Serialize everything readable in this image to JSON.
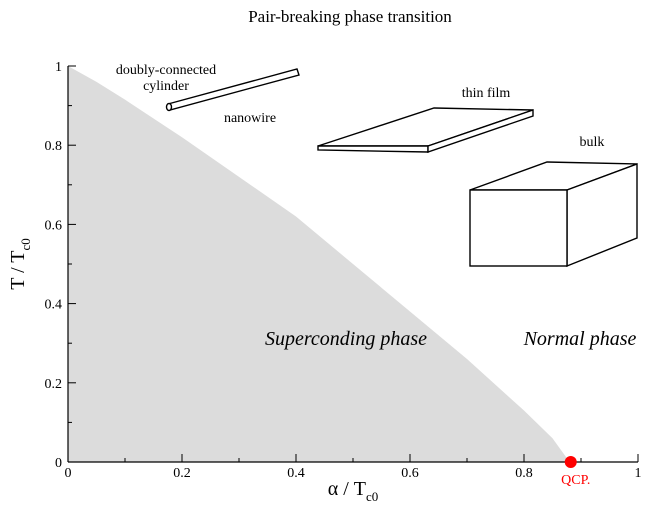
{
  "chart_data": {
    "type": "area",
    "title": "Pair-breaking phase transition",
    "xlabel": {
      "main": "α  / T",
      "sub": "c0"
    },
    "ylabel": {
      "main": "T / T",
      "sub": "c0"
    },
    "x": [
      0,
      0.05,
      0.1,
      0.2,
      0.3,
      0.4,
      0.5,
      0.6,
      0.7,
      0.8,
      0.85,
      0.88
    ],
    "series": [
      {
        "name": "Superconducting region",
        "color": "#dcdcdc",
        "values": [
          1,
          0.96,
          0.915,
          0.82,
          0.72,
          0.62,
          0.5,
          0.38,
          0.26,
          0.13,
          0.06,
          0
        ]
      }
    ],
    "xlim": [
      0,
      1
    ],
    "ylim": [
      0,
      1
    ],
    "xticks": [
      0,
      0.2,
      0.4,
      0.6,
      0.8,
      1
    ],
    "yticks": [
      0,
      0.2,
      0.4,
      0.6,
      0.8,
      1
    ],
    "xminorticks": [
      0.1,
      0.3,
      0.5,
      0.7,
      0.9
    ],
    "yminorticks": [
      0.1,
      0.3,
      0.5,
      0.7,
      0.9
    ],
    "qcp": {
      "x": 0.882,
      "y": 0,
      "label": "QCP.",
      "color": "#ff0000"
    },
    "annotations": [
      "doubly-connected",
      "cylinder",
      "nanowire",
      "thin film",
      "bulk",
      "Superconding phase",
      "Normal phase"
    ]
  }
}
